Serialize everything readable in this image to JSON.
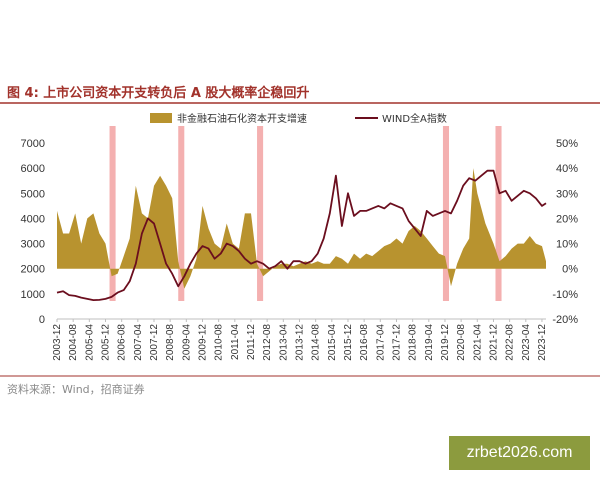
{
  "figure": {
    "title": "图 4:  上市公司资本开支转负后 A 股大概率企稳回升",
    "source": "资料来源：Wind，招商证券",
    "watermark": "zrbet2026.com"
  },
  "chart_data": {
    "type": "bar+line",
    "legend_placement": "top",
    "grid": false,
    "colors": {
      "area": "#b8932f",
      "line": "#6b0e1e",
      "highlight": "#f4b0b0",
      "title": "#a2322b"
    },
    "x_ticks": [
      "2003-12",
      "2004-08",
      "2005-04",
      "2005-12",
      "2006-08",
      "2007-04",
      "2007-12",
      "2008-08",
      "2009-04",
      "2009-12",
      "2010-08",
      "2011-04",
      "2011-12",
      "2012-08",
      "2013-04",
      "2013-12",
      "2014-08",
      "2015-04",
      "2015-12",
      "2016-08",
      "2017-04",
      "2017-12",
      "2018-08",
      "2019-04",
      "2019-12",
      "2020-08",
      "2021-04",
      "2021-12",
      "2022-08",
      "2023-04",
      "2023-12"
    ],
    "left_axis": {
      "range": [
        0,
        7000
      ],
      "ticks": [
        "0",
        "1000",
        "2000",
        "3000",
        "4000",
        "5000",
        "6000",
        "7000"
      ]
    },
    "right_axis": {
      "range": [
        -0.2,
        0.5
      ],
      "ticks": [
        "-20%",
        "-10%",
        "0%",
        "10%",
        "20%",
        "30%",
        "40%",
        "50%"
      ]
    },
    "highlight_periods": [
      [
        "2006-02",
        "2006-05"
      ],
      [
        "2008-12",
        "2009-03"
      ],
      [
        "2012-03",
        "2012-06"
      ],
      [
        "2019-11",
        "2020-02"
      ],
      [
        "2022-01",
        "2022-04"
      ]
    ],
    "series": [
      {
        "name": "非金融石油石化资本开支增速",
        "axis": "right",
        "kind": "area",
        "points": [
          [
            "2003-12",
            0.23
          ],
          [
            "2004-03",
            0.14
          ],
          [
            "2004-06",
            0.14
          ],
          [
            "2004-09",
            0.22
          ],
          [
            "2004-12",
            0.1
          ],
          [
            "2005-03",
            0.2
          ],
          [
            "2005-06",
            0.22
          ],
          [
            "2005-09",
            0.14
          ],
          [
            "2005-12",
            0.1
          ],
          [
            "2006-03",
            -0.03
          ],
          [
            "2006-06",
            -0.02
          ],
          [
            "2006-09",
            0.05
          ],
          [
            "2006-12",
            0.12
          ],
          [
            "2007-03",
            0.33
          ],
          [
            "2007-06",
            0.22
          ],
          [
            "2007-09",
            0.2
          ],
          [
            "2007-12",
            0.33
          ],
          [
            "2008-03",
            0.37
          ],
          [
            "2008-06",
            0.33
          ],
          [
            "2008-09",
            0.28
          ],
          [
            "2008-12",
            0.03
          ],
          [
            "2009-03",
            -0.08
          ],
          [
            "2009-06",
            -0.03
          ],
          [
            "2009-09",
            0.04
          ],
          [
            "2009-12",
            0.25
          ],
          [
            "2010-03",
            0.16
          ],
          [
            "2010-06",
            0.1
          ],
          [
            "2010-09",
            0.08
          ],
          [
            "2010-12",
            0.18
          ],
          [
            "2011-03",
            0.1
          ],
          [
            "2011-06",
            0.08
          ],
          [
            "2011-09",
            0.22
          ],
          [
            "2011-12",
            0.22
          ],
          [
            "2012-03",
            0.02
          ],
          [
            "2012-06",
            -0.03
          ],
          [
            "2012-09",
            -0.01
          ],
          [
            "2012-12",
            0.01
          ],
          [
            "2013-03",
            0.02
          ],
          [
            "2013-06",
            0.02
          ],
          [
            "2013-09",
            0.01
          ],
          [
            "2013-12",
            0.02
          ],
          [
            "2014-03",
            0.03
          ],
          [
            "2014-06",
            0.02
          ],
          [
            "2014-09",
            0.03
          ],
          [
            "2014-12",
            0.02
          ],
          [
            "2015-03",
            0.02
          ],
          [
            "2015-06",
            0.05
          ],
          [
            "2015-09",
            0.04
          ],
          [
            "2015-12",
            0.02
          ],
          [
            "2016-03",
            0.06
          ],
          [
            "2016-06",
            0.04
          ],
          [
            "2016-09",
            0.06
          ],
          [
            "2016-12",
            0.05
          ],
          [
            "2017-03",
            0.07
          ],
          [
            "2017-06",
            0.09
          ],
          [
            "2017-09",
            0.1
          ],
          [
            "2017-12",
            0.12
          ],
          [
            "2018-03",
            0.1
          ],
          [
            "2018-06",
            0.15
          ],
          [
            "2018-09",
            0.17
          ],
          [
            "2018-12",
            0.15
          ],
          [
            "2019-03",
            0.12
          ],
          [
            "2019-06",
            0.09
          ],
          [
            "2019-09",
            0.06
          ],
          [
            "2019-12",
            0.05
          ],
          [
            "2020-03",
            -0.07
          ],
          [
            "2020-06",
            0.02
          ],
          [
            "2020-09",
            0.08
          ],
          [
            "2020-12",
            0.12
          ],
          [
            "2021-02",
            0.4
          ],
          [
            "2021-04",
            0.3
          ],
          [
            "2021-08",
            0.18
          ],
          [
            "2021-12",
            0.1
          ],
          [
            "2022-03",
            0.03
          ],
          [
            "2022-06",
            0.05
          ],
          [
            "2022-09",
            0.08
          ],
          [
            "2022-12",
            0.1
          ],
          [
            "2023-03",
            0.1
          ],
          [
            "2023-06",
            0.13
          ],
          [
            "2023-09",
            0.1
          ],
          [
            "2023-12",
            0.09
          ],
          [
            "2024-02",
            0.03
          ]
        ]
      },
      {
        "name": "WIND全A指数",
        "axis": "left",
        "kind": "line",
        "points": [
          [
            "2003-12",
            1050
          ],
          [
            "2004-03",
            1100
          ],
          [
            "2004-06",
            950
          ],
          [
            "2004-09",
            920
          ],
          [
            "2004-12",
            850
          ],
          [
            "2005-03",
            800
          ],
          [
            "2005-06",
            750
          ],
          [
            "2005-09",
            760
          ],
          [
            "2005-12",
            800
          ],
          [
            "2006-03",
            880
          ],
          [
            "2006-06",
            1050
          ],
          [
            "2006-09",
            1150
          ],
          [
            "2006-12",
            1500
          ],
          [
            "2007-03",
            2200
          ],
          [
            "2007-06",
            3400
          ],
          [
            "2007-09",
            4000
          ],
          [
            "2007-12",
            3800
          ],
          [
            "2008-03",
            3000
          ],
          [
            "2008-06",
            2200
          ],
          [
            "2008-09",
            1800
          ],
          [
            "2008-12",
            1300
          ],
          [
            "2009-03",
            1700
          ],
          [
            "2009-06",
            2200
          ],
          [
            "2009-09",
            2600
          ],
          [
            "2009-12",
            2900
          ],
          [
            "2010-03",
            2800
          ],
          [
            "2010-06",
            2400
          ],
          [
            "2010-09",
            2600
          ],
          [
            "2010-12",
            3000
          ],
          [
            "2011-03",
            2900
          ],
          [
            "2011-06",
            2700
          ],
          [
            "2011-09",
            2400
          ],
          [
            "2011-12",
            2200
          ],
          [
            "2012-03",
            2300
          ],
          [
            "2012-06",
            2200
          ],
          [
            "2012-09",
            2000
          ],
          [
            "2012-12",
            2100
          ],
          [
            "2013-03",
            2300
          ],
          [
            "2013-06",
            2000
          ],
          [
            "2013-09",
            2300
          ],
          [
            "2013-12",
            2300
          ],
          [
            "2014-03",
            2200
          ],
          [
            "2014-06",
            2300
          ],
          [
            "2014-09",
            2600
          ],
          [
            "2014-12",
            3200
          ],
          [
            "2015-03",
            4200
          ],
          [
            "2015-06",
            5700
          ],
          [
            "2015-09",
            3700
          ],
          [
            "2015-12",
            5000
          ],
          [
            "2016-03",
            4100
          ],
          [
            "2016-06",
            4300
          ],
          [
            "2016-09",
            4300
          ],
          [
            "2016-12",
            4400
          ],
          [
            "2017-03",
            4500
          ],
          [
            "2017-06",
            4400
          ],
          [
            "2017-09",
            4600
          ],
          [
            "2017-12",
            4500
          ],
          [
            "2018-03",
            4400
          ],
          [
            "2018-06",
            3900
          ],
          [
            "2018-09",
            3600
          ],
          [
            "2018-12",
            3300
          ],
          [
            "2019-03",
            4300
          ],
          [
            "2019-06",
            4100
          ],
          [
            "2019-09",
            4200
          ],
          [
            "2019-12",
            4300
          ],
          [
            "2020-03",
            4200
          ],
          [
            "2020-06",
            4700
          ],
          [
            "2020-09",
            5300
          ],
          [
            "2020-12",
            5600
          ],
          [
            "2021-03",
            5500
          ],
          [
            "2021-06",
            5700
          ],
          [
            "2021-09",
            5900
          ],
          [
            "2021-12",
            5900
          ],
          [
            "2022-03",
            5000
          ],
          [
            "2022-06",
            5100
          ],
          [
            "2022-09",
            4700
          ],
          [
            "2022-12",
            4900
          ],
          [
            "2023-03",
            5100
          ],
          [
            "2023-06",
            5000
          ],
          [
            "2023-09",
            4800
          ],
          [
            "2023-12",
            4500
          ],
          [
            "2024-02",
            4600
          ]
        ]
      }
    ]
  }
}
